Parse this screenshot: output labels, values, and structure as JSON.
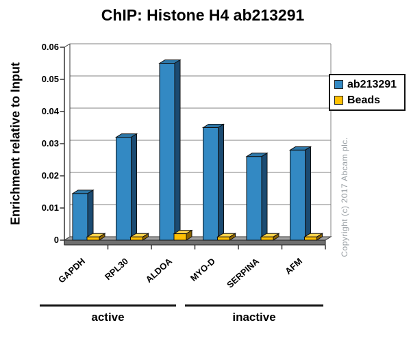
{
  "chart_data": {
    "type": "bar",
    "style": "3d-column",
    "title": "ChIP: Histone H4 ab213291",
    "ylabel": "Enrichment relative to Input",
    "xlabel": "",
    "categories": [
      "GAPDH",
      "RPL30",
      "ALDOA",
      "MYO-D",
      "SERPINA",
      "AFM"
    ],
    "series": [
      {
        "name": "ab213291",
        "color": "#3389C3",
        "color_top": "#2D77A8",
        "color_side": "#1B4B72",
        "values": [
          0.0145,
          0.032,
          0.055,
          0.035,
          0.026,
          0.028
        ]
      },
      {
        "name": "Beads",
        "color": "#FFC003",
        "color_top": "#FFD34D",
        "color_side": "#8A6200",
        "values": [
          0.001,
          0.001,
          0.002,
          0.001,
          0.001,
          0.001
        ]
      }
    ],
    "ylim": [
      0,
      0.06
    ],
    "ytick_step": 0.01,
    "ytick_labels": [
      "0",
      "0.01",
      "0.02",
      "0.03",
      "0.04",
      "0.05",
      "0.06"
    ],
    "grid": true,
    "legend_position": "right",
    "group_labels": [
      {
        "label": "active",
        "categories": [
          "GAPDH",
          "RPL30",
          "ALDOA"
        ]
      },
      {
        "label": "inactive",
        "categories": [
          "MYO-D",
          "SERPINA",
          "AFM"
        ]
      }
    ],
    "copyright": "Copyright (c) 2017 Abcam plc.",
    "colors": {
      "gridline": "#808080",
      "axis": "#333333",
      "floor_top": "#A2A2A2",
      "floor_front": "#6F6F6F",
      "bar_outline": "#111111"
    }
  }
}
